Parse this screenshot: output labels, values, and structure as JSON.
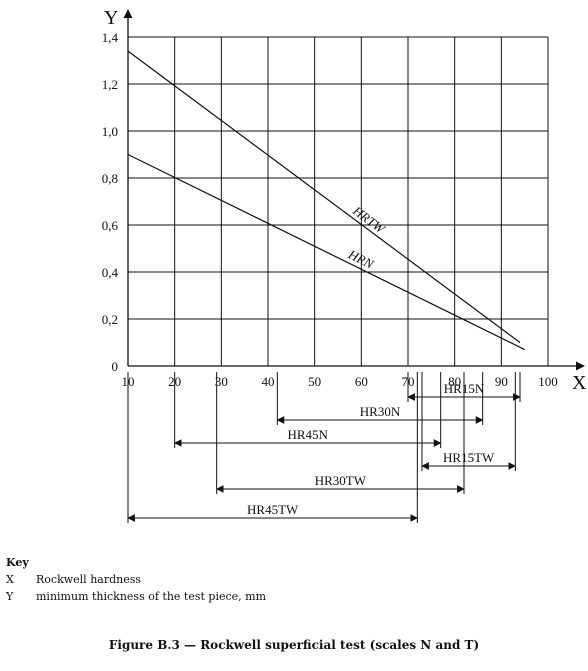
{
  "chart_data": {
    "type": "line",
    "xlabel": "X",
    "ylabel": "Y",
    "xlim": [
      10,
      100
    ],
    "ylim": [
      0,
      1.4
    ],
    "x_ticks": [
      "10",
      "20",
      "30",
      "40",
      "50",
      "60",
      "70",
      "80",
      "90",
      "100"
    ],
    "y_ticks": [
      "0",
      "0,2",
      "0,4",
      "0,6",
      "0,8",
      "1,0",
      "1,2",
      "1,4"
    ],
    "series": [
      {
        "name": "HRTW",
        "x": [
          10,
          94
        ],
        "y": [
          1.34,
          0.1
        ]
      },
      {
        "name": "HRN",
        "x": [
          10,
          95
        ],
        "y": [
          0.9,
          0.07
        ]
      }
    ],
    "ranges": [
      {
        "name": "HR15N",
        "start": 70,
        "end": 94,
        "row": 1
      },
      {
        "name": "HR30N",
        "start": 42,
        "end": 86,
        "row": 2
      },
      {
        "name": "HR45N",
        "start": 20,
        "end": 77,
        "row": 3
      },
      {
        "name": "HR15TW",
        "start": 73,
        "end": 93,
        "row": 4
      },
      {
        "name": "HR30TW",
        "start": 29,
        "end": 82,
        "row": 5
      },
      {
        "name": "HR45TW",
        "start": 10,
        "end": 72,
        "row": 6
      }
    ]
  },
  "key": {
    "title": "Key",
    "items": [
      {
        "symbol": "X",
        "text": "Rockwell hardness"
      },
      {
        "symbol": "Y",
        "text": "minimum thickness of the test piece, mm"
      }
    ]
  },
  "caption": "Figure B.3 — Rockwell superficial test (scales N and T)"
}
